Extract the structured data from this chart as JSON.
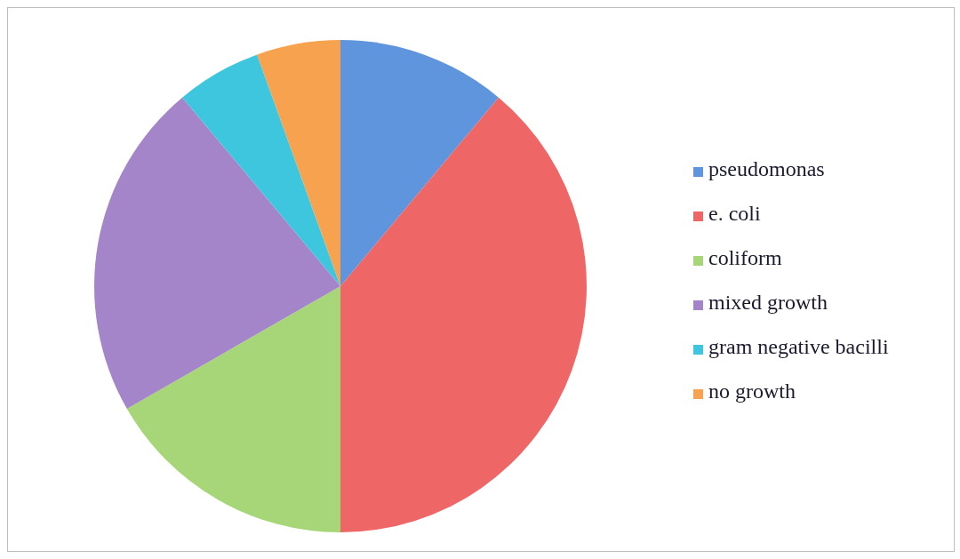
{
  "chart_data": {
    "type": "pie",
    "categories": [
      "pseudomonas",
      "e. coli",
      "coliform",
      "mixed growth",
      "gram negative bacilli",
      "no growth"
    ],
    "values": [
      11.1,
      38.9,
      16.7,
      22.2,
      5.6,
      5.5
    ],
    "colors": [
      "#5f95dc",
      "#ee6666",
      "#a6d677",
      "#a485c9",
      "#3fc6df",
      "#f7a24f"
    ],
    "legend": "right"
  }
}
